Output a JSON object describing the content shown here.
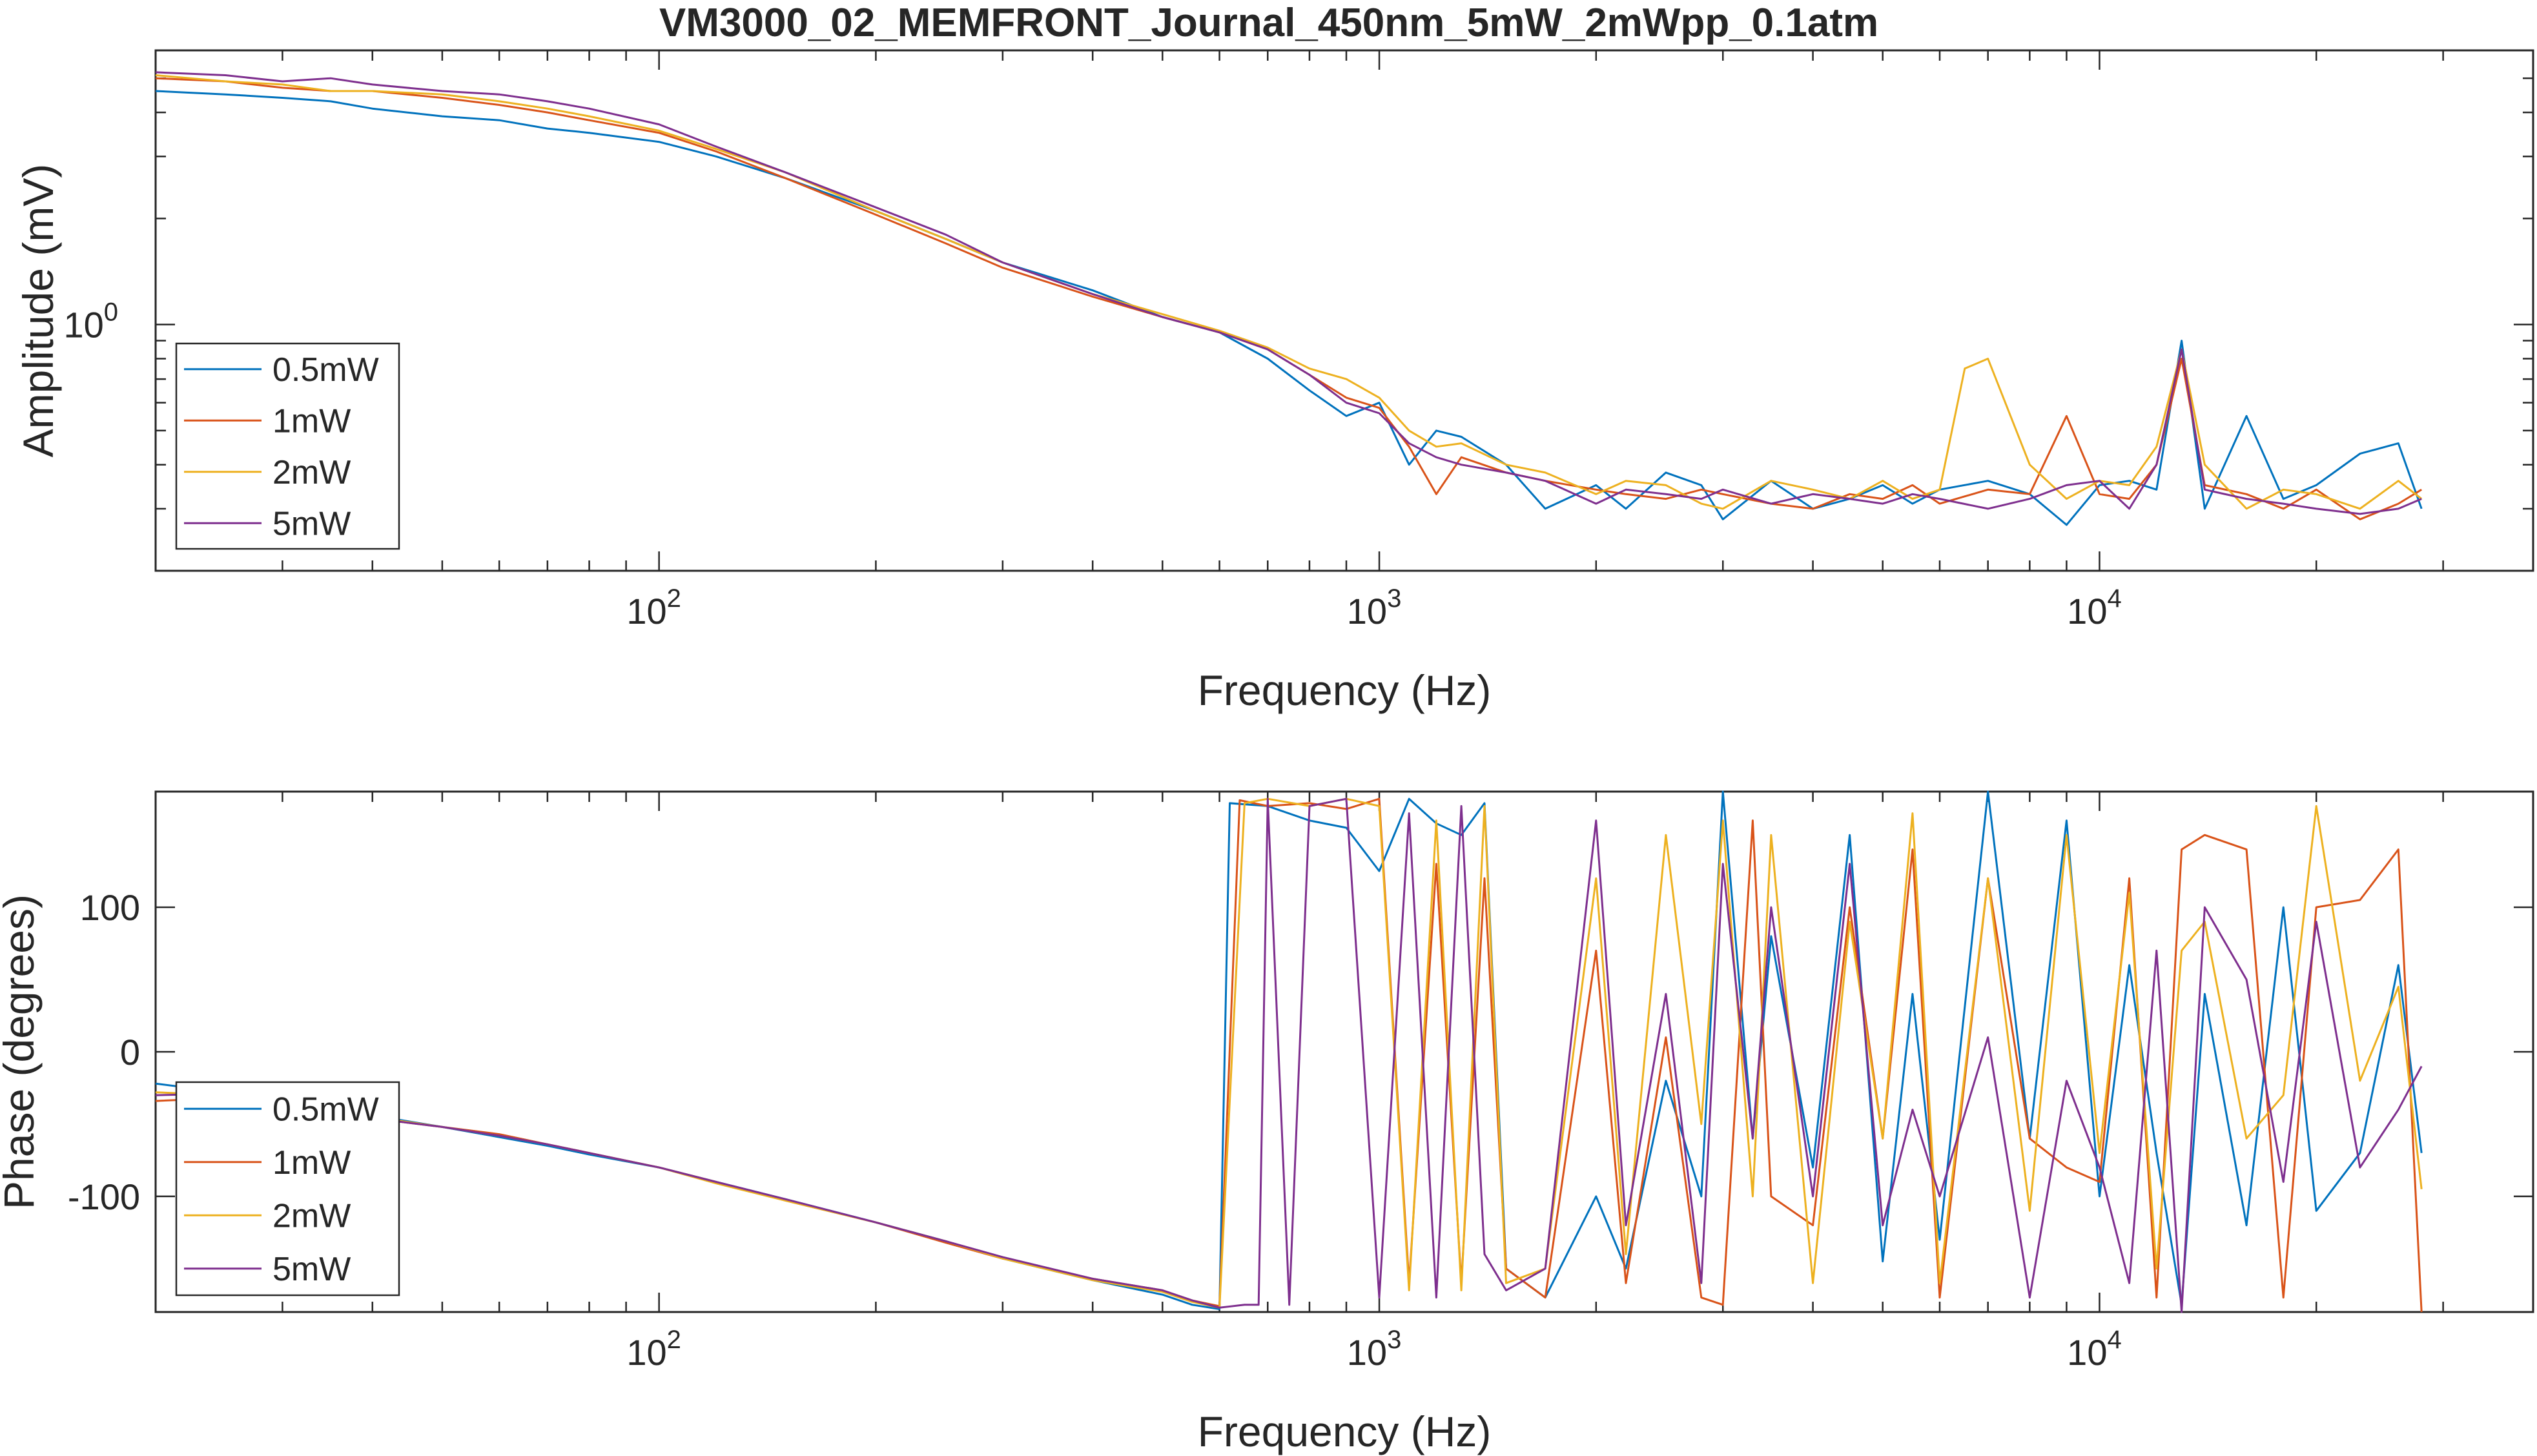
{
  "figure_title": "VM3000_02_MEMFRONT_Journal_450nm_5mW_2mWpp_0.1atm",
  "colors": {
    "0.5mW": "#0072BD",
    "1mW": "#D95319",
    "2mW": "#EDB120",
    "5mW": "#7E2F8E",
    "axis": "#262626"
  },
  "chart_data": [
    {
      "type": "line",
      "title": "VM3000_02_MEMFRONT_Journal_450nm_5mW_2mWpp_0.1atm",
      "xlabel": "Frequency (Hz)",
      "ylabel": "Amplitude (mV)",
      "xscale": "log",
      "yscale": "log",
      "xlim": [
        20,
        40000
      ],
      "ylim": [
        0.2,
        6
      ],
      "xticks": [
        {
          "value": 100,
          "base": "10",
          "exp": "2"
        },
        {
          "value": 1000,
          "base": "10",
          "exp": "3"
        },
        {
          "value": 10000,
          "base": "10",
          "exp": "4"
        }
      ],
      "yticks": [
        {
          "value": 1,
          "base": "10",
          "exp": "0"
        }
      ],
      "grid": false,
      "legend_position": "bottom-left",
      "series": [
        {
          "name": "0.5mW",
          "color": "#0072BD",
          "x": [
            20,
            25,
            30,
            35,
            40,
            50,
            60,
            70,
            80,
            100,
            120,
            150,
            200,
            250,
            300,
            400,
            500,
            600,
            700,
            800,
            900,
            1000,
            1100,
            1200,
            1300,
            1500,
            1700,
            2000,
            2200,
            2500,
            2800,
            3000,
            3500,
            4000,
            4500,
            5000,
            5500,
            6000,
            7000,
            8000,
            9000,
            10000,
            11000,
            12000,
            13000,
            14000,
            16000,
            18000,
            20000,
            23000,
            26000,
            28000
          ],
          "y": [
            4.6,
            4.5,
            4.4,
            4.3,
            4.1,
            3.9,
            3.8,
            3.6,
            3.5,
            3.3,
            3.0,
            2.6,
            2.1,
            1.75,
            1.5,
            1.25,
            1.05,
            0.95,
            0.8,
            0.65,
            0.55,
            0.6,
            0.4,
            0.5,
            0.48,
            0.4,
            0.3,
            0.35,
            0.3,
            0.38,
            0.35,
            0.28,
            0.36,
            0.3,
            0.32,
            0.35,
            0.31,
            0.34,
            0.36,
            0.33,
            0.27,
            0.35,
            0.36,
            0.34,
            0.9,
            0.3,
            0.55,
            0.32,
            0.35,
            0.43,
            0.46,
            0.3
          ]
        },
        {
          "name": "1mW",
          "color": "#D95319",
          "x": [
            20,
            25,
            30,
            35,
            40,
            50,
            60,
            70,
            80,
            100,
            120,
            150,
            200,
            250,
            300,
            400,
            500,
            600,
            700,
            800,
            900,
            1000,
            1100,
            1200,
            1300,
            1500,
            1700,
            2000,
            2200,
            2500,
            2800,
            3000,
            3500,
            4000,
            4500,
            5000,
            5500,
            6000,
            7000,
            8000,
            9000,
            10000,
            11000,
            12000,
            13000,
            14000,
            16000,
            18000,
            20000,
            23000,
            26000,
            28000
          ],
          "y": [
            5.0,
            4.9,
            4.7,
            4.6,
            4.6,
            4.4,
            4.2,
            4.0,
            3.8,
            3.5,
            3.1,
            2.6,
            2.05,
            1.7,
            1.45,
            1.2,
            1.05,
            0.95,
            0.85,
            0.72,
            0.62,
            0.58,
            0.45,
            0.33,
            0.42,
            0.38,
            0.36,
            0.34,
            0.33,
            0.32,
            0.34,
            0.33,
            0.31,
            0.3,
            0.33,
            0.32,
            0.35,
            0.31,
            0.34,
            0.33,
            0.55,
            0.33,
            0.32,
            0.4,
            0.8,
            0.35,
            0.33,
            0.3,
            0.34,
            0.28,
            0.31,
            0.34
          ]
        },
        {
          "name": "2mW",
          "color": "#EDB120",
          "x": [
            20,
            25,
            30,
            35,
            40,
            50,
            60,
            70,
            80,
            100,
            120,
            150,
            200,
            250,
            300,
            400,
            500,
            600,
            700,
            800,
            900,
            1000,
            1100,
            1200,
            1300,
            1500,
            1700,
            2000,
            2200,
            2500,
            2800,
            3000,
            3500,
            4000,
            4500,
            5000,
            5500,
            6000,
            6500,
            7000,
            8000,
            9000,
            10000,
            11000,
            12000,
            13000,
            14000,
            16000,
            18000,
            20000,
            23000,
            26000,
            28000
          ],
          "y": [
            5.1,
            4.9,
            4.8,
            4.6,
            4.6,
            4.5,
            4.3,
            4.1,
            3.9,
            3.55,
            3.15,
            2.7,
            2.1,
            1.75,
            1.5,
            1.22,
            1.07,
            0.96,
            0.86,
            0.75,
            0.7,
            0.62,
            0.5,
            0.45,
            0.46,
            0.4,
            0.38,
            0.33,
            0.36,
            0.35,
            0.31,
            0.3,
            0.36,
            0.34,
            0.32,
            0.36,
            0.32,
            0.34,
            0.75,
            0.8,
            0.4,
            0.32,
            0.36,
            0.35,
            0.45,
            0.85,
            0.4,
            0.3,
            0.34,
            0.33,
            0.3,
            0.36,
            0.32
          ]
        },
        {
          "name": "5mW",
          "color": "#7E2F8E",
          "x": [
            20,
            25,
            30,
            35,
            40,
            50,
            60,
            70,
            80,
            100,
            120,
            150,
            200,
            250,
            300,
            400,
            500,
            600,
            700,
            800,
            900,
            1000,
            1100,
            1200,
            1300,
            1500,
            1700,
            2000,
            2200,
            2500,
            2800,
            3000,
            3500,
            4000,
            4500,
            5000,
            5500,
            6000,
            7000,
            8000,
            9000,
            10000,
            11000,
            12000,
            13000,
            14000,
            16000,
            18000,
            20000,
            23000,
            26000,
            28000
          ],
          "y": [
            5.2,
            5.1,
            4.9,
            5.0,
            4.8,
            4.6,
            4.5,
            4.3,
            4.1,
            3.7,
            3.2,
            2.7,
            2.15,
            1.8,
            1.5,
            1.22,
            1.05,
            0.95,
            0.85,
            0.72,
            0.6,
            0.56,
            0.46,
            0.42,
            0.4,
            0.38,
            0.36,
            0.31,
            0.34,
            0.33,
            0.32,
            0.34,
            0.31,
            0.33,
            0.32,
            0.31,
            0.33,
            0.32,
            0.3,
            0.32,
            0.35,
            0.36,
            0.3,
            0.4,
            0.85,
            0.34,
            0.32,
            0.31,
            0.3,
            0.29,
            0.3,
            0.32
          ]
        }
      ]
    },
    {
      "type": "line",
      "xlabel": "Frequency (Hz)",
      "ylabel": "Phase (degrees)",
      "xscale": "log",
      "yscale": "linear",
      "xlim": [
        20,
        40000
      ],
      "ylim": [
        -180,
        180
      ],
      "xticks": [
        {
          "value": 100,
          "base": "10",
          "exp": "2"
        },
        {
          "value": 1000,
          "base": "10",
          "exp": "3"
        },
        {
          "value": 10000,
          "base": "10",
          "exp": "4"
        }
      ],
      "yticks": [
        {
          "value": 100,
          "label": "100"
        },
        {
          "value": 0,
          "label": "0"
        },
        {
          "value": -100,
          "label": "-100"
        }
      ],
      "grid": false,
      "legend_position": "bottom-left",
      "series": [
        {
          "name": "0.5mW",
          "color": "#0072BD",
          "x": [
            20,
            25,
            30,
            40,
            50,
            60,
            70,
            80,
            100,
            120,
            150,
            200,
            250,
            300,
            400,
            500,
            550,
            600,
            620,
            700,
            800,
            900,
            1000,
            1100,
            1200,
            1300,
            1400,
            1500,
            1700,
            2000,
            2200,
            2500,
            2800,
            3000,
            3300,
            3500,
            4000,
            4500,
            5000,
            5500,
            6000,
            7000,
            8000,
            9000,
            10000,
            11000,
            12000,
            13000,
            14000,
            16000,
            18000,
            20000,
            23000,
            26000,
            28000
          ],
          "y": [
            -22,
            -28,
            -34,
            -44,
            -52,
            -59,
            -65,
            -71,
            -80,
            -90,
            -102,
            -118,
            -131,
            -143,
            -158,
            -168,
            -175,
            -178,
            172,
            170,
            160,
            155,
            125,
            175,
            158,
            150,
            172,
            -150,
            -170,
            -100,
            -150,
            -20,
            -100,
            180,
            -60,
            80,
            -80,
            150,
            -145,
            40,
            -130,
            180,
            -60,
            160,
            -100,
            60,
            -70,
            -175,
            40,
            -120,
            100,
            -110,
            -70,
            60,
            -70
          ]
        },
        {
          "name": "1mW",
          "color": "#D95319",
          "x": [
            20,
            25,
            30,
            40,
            50,
            60,
            70,
            80,
            100,
            120,
            150,
            200,
            250,
            300,
            400,
            500,
            550,
            600,
            640,
            700,
            800,
            900,
            1000,
            1100,
            1200,
            1300,
            1400,
            1500,
            1700,
            2000,
            2200,
            2500,
            2800,
            3000,
            3300,
            3500,
            4000,
            4500,
            5000,
            5500,
            6000,
            7000,
            8000,
            9000,
            10000,
            11000,
            12000,
            13000,
            14000,
            16000,
            18000,
            20000,
            23000,
            26000,
            28000
          ],
          "y": [
            -34,
            -32,
            -38,
            -46,
            -52,
            -57,
            -64,
            -70,
            -80,
            -90,
            -103,
            -118,
            -132,
            -143,
            -157,
            -165,
            -172,
            -176,
            174,
            170,
            172,
            168,
            175,
            -160,
            130,
            -160,
            120,
            -150,
            -170,
            70,
            -160,
            10,
            -170,
            -175,
            160,
            -100,
            -120,
            100,
            -60,
            140,
            -170,
            120,
            -60,
            -80,
            -90,
            120,
            -170,
            140,
            150,
            140,
            -170,
            100,
            105,
            140,
            -180
          ]
        },
        {
          "name": "2mW",
          "color": "#EDB120",
          "x": [
            20,
            25,
            30,
            40,
            50,
            60,
            70,
            80,
            100,
            120,
            150,
            200,
            250,
            300,
            400,
            500,
            550,
            600,
            650,
            700,
            800,
            900,
            1000,
            1100,
            1200,
            1300,
            1400,
            1500,
            1700,
            2000,
            2200,
            2500,
            2800,
            3000,
            3300,
            3500,
            4000,
            4500,
            5000,
            5500,
            6000,
            7000,
            8000,
            9000,
            10000,
            11000,
            12000,
            13000,
            14000,
            16000,
            18000,
            20000,
            23000,
            26000,
            28000
          ],
          "y": [
            -28,
            -30,
            -36,
            -45,
            -52,
            -58,
            -64,
            -70,
            -80,
            -91,
            -103,
            -118,
            -131,
            -143,
            -158,
            -166,
            -173,
            -177,
            172,
            175,
            170,
            175,
            170,
            -165,
            160,
            -165,
            170,
            -160,
            -150,
            120,
            -140,
            150,
            -50,
            160,
            -100,
            150,
            -160,
            90,
            -60,
            165,
            -160,
            120,
            -110,
            150,
            -70,
            110,
            -150,
            70,
            90,
            -60,
            -30,
            170,
            -20,
            45,
            -95
          ]
        },
        {
          "name": "5mW",
          "color": "#7E2F8E",
          "x": [
            20,
            25,
            30,
            40,
            50,
            60,
            70,
            80,
            100,
            120,
            150,
            200,
            250,
            300,
            400,
            500,
            550,
            600,
            650,
            680,
            700,
            750,
            800,
            900,
            1000,
            1100,
            1200,
            1300,
            1400,
            1500,
            1700,
            2000,
            2200,
            2500,
            2800,
            3000,
            3300,
            3500,
            4000,
            4500,
            5000,
            5500,
            6000,
            7000,
            8000,
            9000,
            10000,
            11000,
            12000,
            13000,
            14000,
            16000,
            18000,
            20000,
            23000,
            26000,
            28000
          ],
          "y": [
            -30,
            -29,
            -35,
            -46,
            -52,
            -58,
            -64,
            -70,
            -80,
            -90,
            -102,
            -118,
            -131,
            -142,
            -157,
            -165,
            -172,
            -177,
            -175,
            -175,
            175,
            -175,
            170,
            175,
            -170,
            165,
            -170,
            170,
            -140,
            -165,
            -150,
            160,
            -120,
            40,
            -160,
            130,
            -60,
            100,
            -100,
            130,
            -120,
            -40,
            -100,
            10,
            -170,
            -20,
            -80,
            -160,
            70,
            -180,
            100,
            50,
            -90,
            90,
            -80,
            -40,
            -10
          ]
        }
      ]
    }
  ]
}
